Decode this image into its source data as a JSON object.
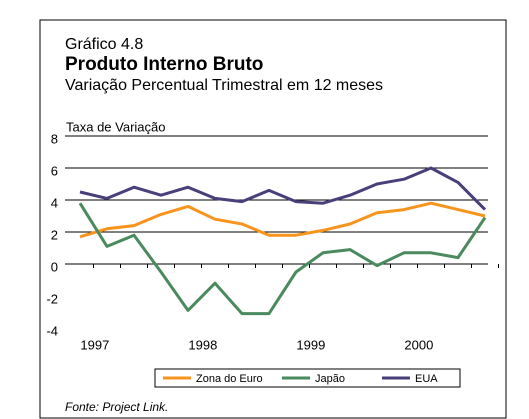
{
  "chart_data": {
    "type": "line",
    "supertitle": "Gráfico 4.8",
    "title": "Produto Interno Bruto",
    "subtitle": "Variação Percentual Trimestral em 12 meses",
    "ylabel": "Taxa de Variação",
    "source": "Fonte: Project Link.",
    "categories": [
      "1997",
      null,
      null,
      null,
      "1998",
      null,
      null,
      null,
      "1999",
      null,
      null,
      null,
      "2000",
      null,
      null,
      null
    ],
    "series": [
      {
        "name": "Zona do Euro",
        "color": "#f7941d",
        "values": [
          1.7,
          2.2,
          2.4,
          3.1,
          3.6,
          2.8,
          2.5,
          1.8,
          1.8,
          2.1,
          2.5,
          3.2,
          3.4,
          3.8,
          3.4,
          3.0
        ]
      },
      {
        "name": "Japão",
        "color": "#4b8a5e",
        "values": [
          3.8,
          1.1,
          1.8,
          -0.5,
          -2.9,
          -1.2,
          -3.1,
          -3.1,
          -0.5,
          0.7,
          0.9,
          -0.1,
          0.7,
          0.7,
          0.4,
          2.9
        ]
      },
      {
        "name": "EUA",
        "color": "#4a3f7a",
        "values": [
          4.5,
          4.1,
          4.8,
          4.3,
          4.8,
          4.1,
          3.9,
          4.6,
          3.9,
          3.8,
          4.3,
          5.0,
          5.3,
          6.0,
          5.1,
          3.4
        ]
      }
    ],
    "ylim": [
      -4,
      8
    ],
    "yticks": [
      -4,
      -2,
      0,
      2,
      4,
      6,
      8
    ],
    "grid": true
  }
}
